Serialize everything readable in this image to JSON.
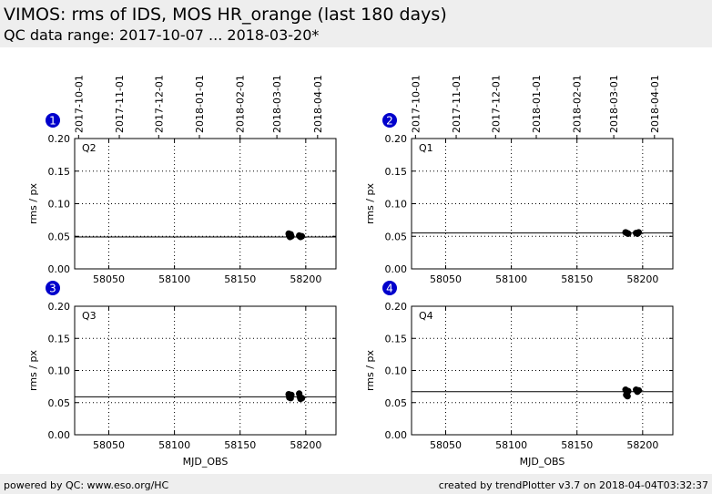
{
  "header": {
    "title": "VIMOS: rms of IDS, MOS HR_orange (last 180 days)",
    "subtitle": "QC data range: 2017-10-07 ... 2018-03-20*"
  },
  "footer": {
    "left": "powered by QC: www.eso.org/HC",
    "right": "created by trendPlotter v3.7 on 2018-04-04T03:32:37"
  },
  "colors": {
    "marker": "#000000",
    "badge": "#0000cc",
    "header_bg": "#eeeeee"
  },
  "chart_data": [
    {
      "type": "scatter",
      "badge": "1",
      "panel_label": "Q2",
      "xlabel": "",
      "ylabel": "rms / px",
      "xlim": [
        58024,
        58223
      ],
      "ylim": [
        0.0,
        0.2
      ],
      "xticks": [
        58050,
        58100,
        58150,
        58200
      ],
      "yticks": [
        0.0,
        0.05,
        0.1,
        0.15,
        0.2
      ],
      "date_ticks": [
        {
          "x": 58027,
          "label": "2017-10-01"
        },
        {
          "x": 58058,
          "label": "2017-11-01"
        },
        {
          "x": 58088,
          "label": "2017-12-01"
        },
        {
          "x": 58119,
          "label": "2018-01-01"
        },
        {
          "x": 58150,
          "label": "2018-02-01"
        },
        {
          "x": 58178,
          "label": "2018-03-01"
        },
        {
          "x": 58209,
          "label": "2018-04-01"
        }
      ],
      "reference_line": 0.049,
      "grid": true,
      "x": [
        58187,
        58187.5,
        58188,
        58188.5,
        58189,
        58195,
        58196,
        58197
      ],
      "y": [
        0.054,
        0.051,
        0.049,
        0.053,
        0.05,
        0.051,
        0.049,
        0.05
      ]
    },
    {
      "type": "scatter",
      "badge": "2",
      "panel_label": "Q1",
      "xlabel": "",
      "ylabel": "rms / px",
      "xlim": [
        58024,
        58223
      ],
      "ylim": [
        0.0,
        0.2
      ],
      "xticks": [
        58050,
        58100,
        58150,
        58200
      ],
      "yticks": [
        0.0,
        0.05,
        0.1,
        0.15,
        0.2
      ],
      "date_ticks": [
        {
          "x": 58027,
          "label": "2017-10-01"
        },
        {
          "x": 58058,
          "label": "2017-11-01"
        },
        {
          "x": 58088,
          "label": "2017-12-01"
        },
        {
          "x": 58119,
          "label": "2018-01-01"
        },
        {
          "x": 58150,
          "label": "2018-02-01"
        },
        {
          "x": 58178,
          "label": "2018-03-01"
        },
        {
          "x": 58209,
          "label": "2018-04-01"
        }
      ],
      "reference_line": 0.055,
      "grid": true,
      "x": [
        58187,
        58188,
        58189,
        58195,
        58196,
        58197
      ],
      "y": [
        0.056,
        0.055,
        0.054,
        0.055,
        0.054,
        0.056
      ]
    },
    {
      "type": "scatter",
      "badge": "3",
      "panel_label": "Q3",
      "xlabel": "MJD_OBS",
      "ylabel": "rms / px",
      "xlim": [
        58024,
        58223
      ],
      "ylim": [
        0.0,
        0.2
      ],
      "xticks": [
        58050,
        58100,
        58150,
        58200
      ],
      "yticks": [
        0.0,
        0.05,
        0.1,
        0.15,
        0.2
      ],
      "date_ticks": [],
      "reference_line": 0.059,
      "grid": true,
      "x": [
        58187,
        58187.5,
        58188,
        58188.5,
        58189,
        58195,
        58195.5,
        58196,
        58197
      ],
      "y": [
        0.063,
        0.058,
        0.061,
        0.057,
        0.062,
        0.064,
        0.059,
        0.056,
        0.057
      ]
    },
    {
      "type": "scatter",
      "badge": "4",
      "panel_label": "Q4",
      "xlabel": "MJD_OBS",
      "ylabel": "rms / px",
      "xlim": [
        58024,
        58223
      ],
      "ylim": [
        0.0,
        0.2
      ],
      "xticks": [
        58050,
        58100,
        58150,
        58200
      ],
      "yticks": [
        0.0,
        0.05,
        0.1,
        0.15,
        0.2
      ],
      "date_ticks": [],
      "reference_line": 0.067,
      "grid": true,
      "x": [
        58187,
        58187.5,
        58188,
        58188.5,
        58189,
        58195,
        58196,
        58197
      ],
      "y": [
        0.07,
        0.062,
        0.065,
        0.06,
        0.068,
        0.07,
        0.067,
        0.069
      ]
    }
  ]
}
